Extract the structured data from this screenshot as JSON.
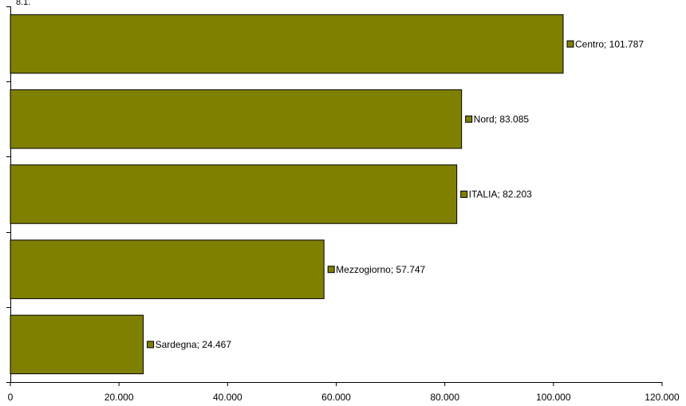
{
  "chart_data": {
    "type": "barh",
    "title": "8.1.",
    "values": [
      101787,
      83085,
      82203,
      57747,
      24467
    ],
    "value_labels": [
      "Centro; 101.787",
      "Nord; 83.085",
      "ITALIA; 82.203",
      "Mezzogiorno; 57.747",
      "Sardegna; 24.467"
    ],
    "color": "#808000",
    "xlim": [
      0,
      120000
    ],
    "xticks": [
      0,
      {
        "value": 20000,
        "label": "20.000"
      },
      {
        "value": 40000,
        "label": "40.000"
      },
      {
        "value": 60000,
        "label": "60.000"
      },
      {
        "value": 80000,
        "label": "80.000"
      },
      {
        "value": 100000,
        "label": "100.000"
      },
      {
        "value": 120000,
        "label": "120.000"
      }
    ]
  }
}
